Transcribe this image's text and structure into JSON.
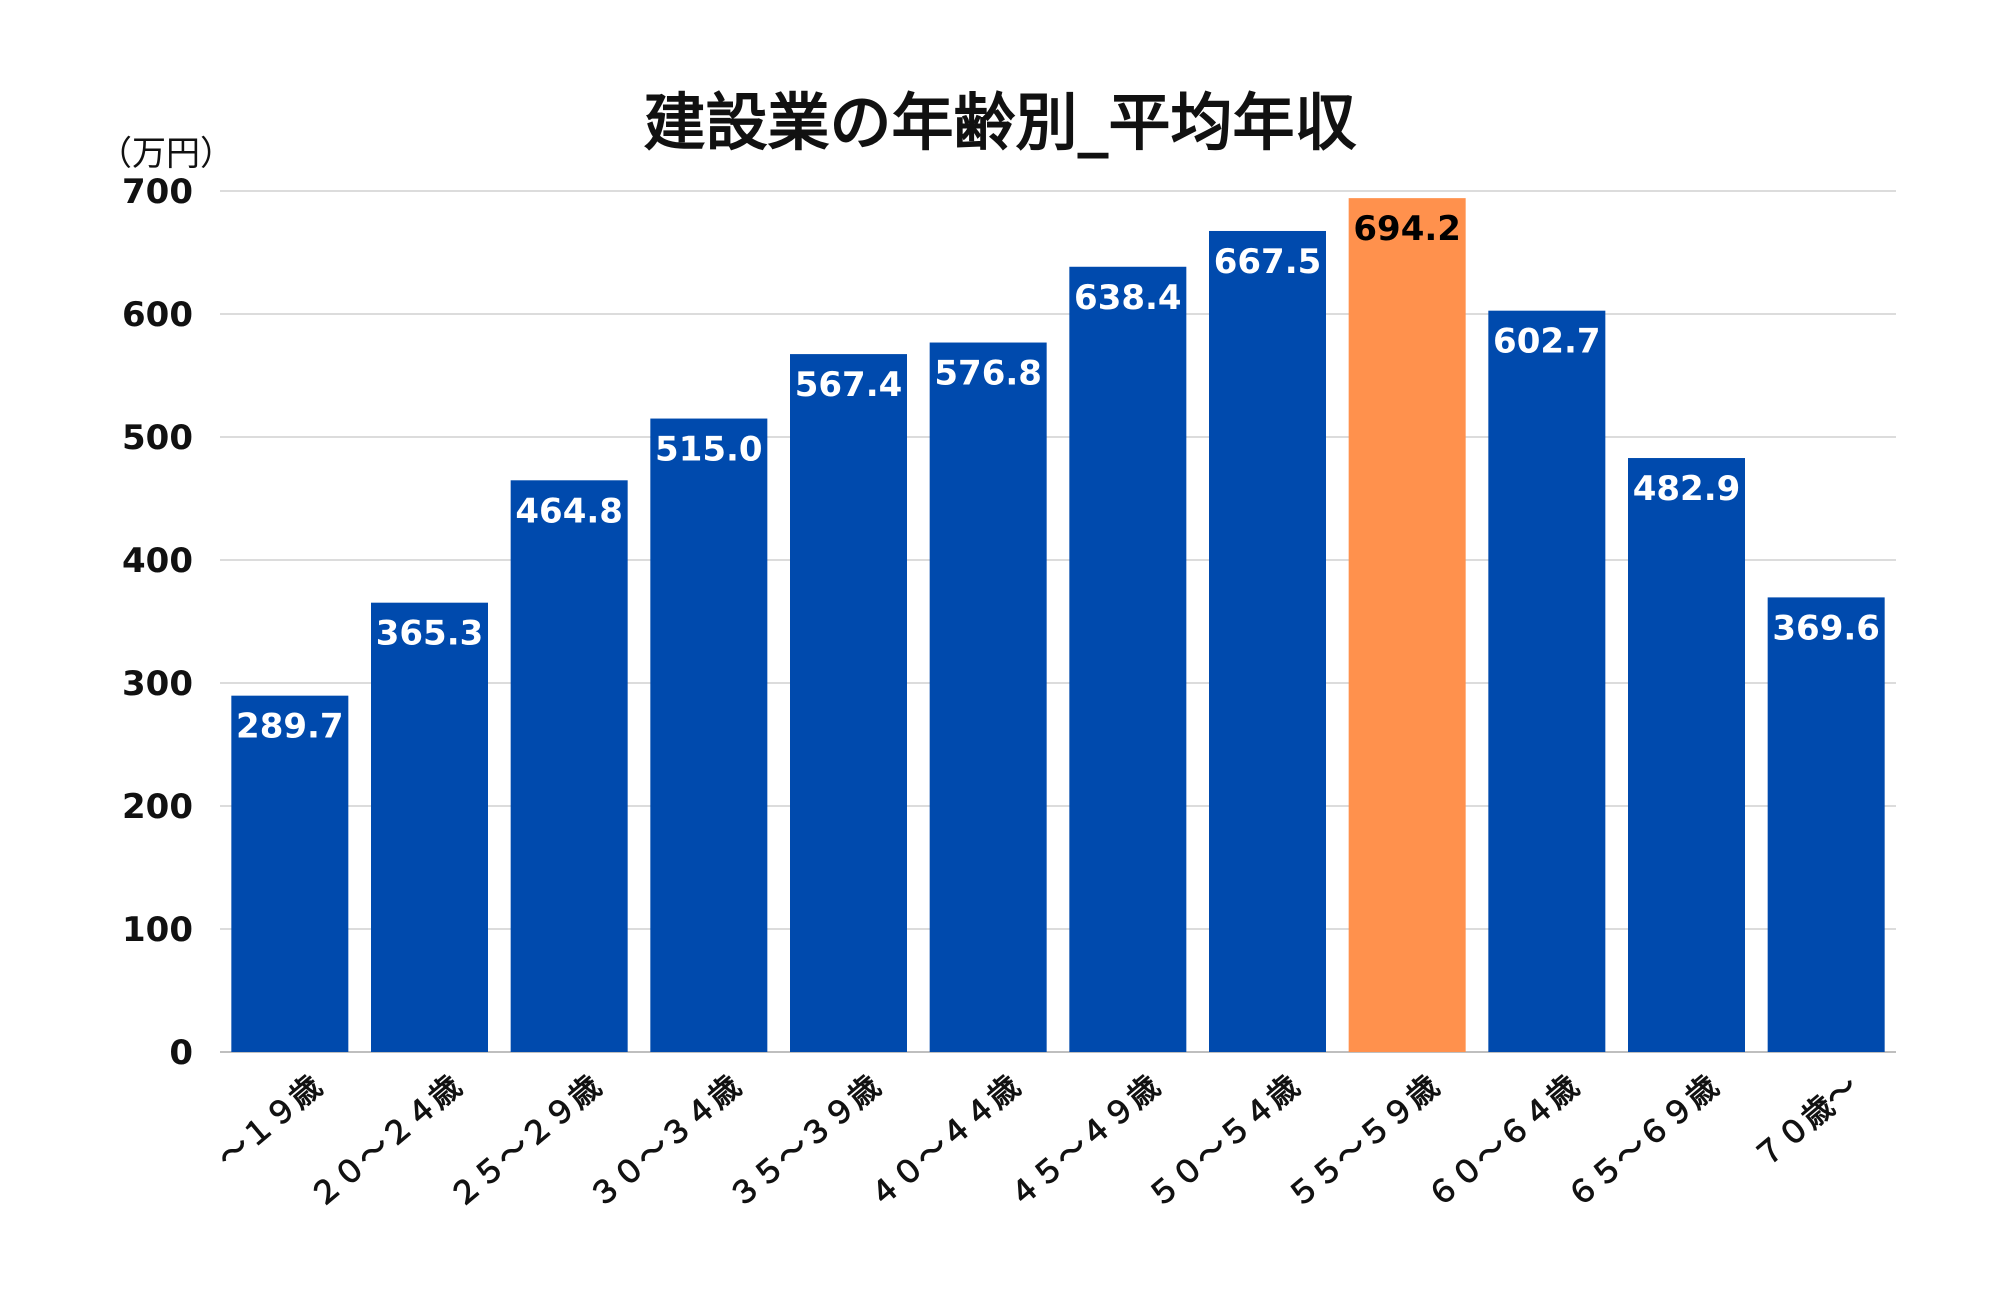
{
  "chart_data": {
    "type": "bar",
    "title": "建設業の年齢別_平均年収",
    "unit_label": "（万円）",
    "categories": [
      "～１９歳",
      "２０～２４歳",
      "２５～２９歳",
      "３０～３４歳",
      "３５～３９歳",
      "４０～４４歳",
      "４５～４９歳",
      "５０～５４歳",
      "５５～５９歳",
      "６０～６４歳",
      "６５～６９歳",
      "７０歳～"
    ],
    "values": [
      289.7,
      365.3,
      464.8,
      515.0,
      567.4,
      576.8,
      638.4,
      667.5,
      694.2,
      602.7,
      482.9,
      369.6
    ],
    "value_labels": [
      "289.7",
      "365.3",
      "464.8",
      "515.0",
      "567.4",
      "576.8",
      "638.4",
      "667.5",
      "694.2",
      "602.7",
      "482.9",
      "369.6"
    ],
    "highlight_index": 8,
    "ylim": [
      0,
      700
    ],
    "yticks": [
      0,
      100,
      200,
      300,
      400,
      500,
      600,
      700
    ],
    "grid": true,
    "legend": "none",
    "colors": {
      "bar": "#004AAD",
      "highlight": "#FF914D",
      "label_on_bar": "#FFFFFF",
      "label_on_highlight": "#000000",
      "grid": "#D0D0D0",
      "axis": "#BFBFBF"
    }
  }
}
